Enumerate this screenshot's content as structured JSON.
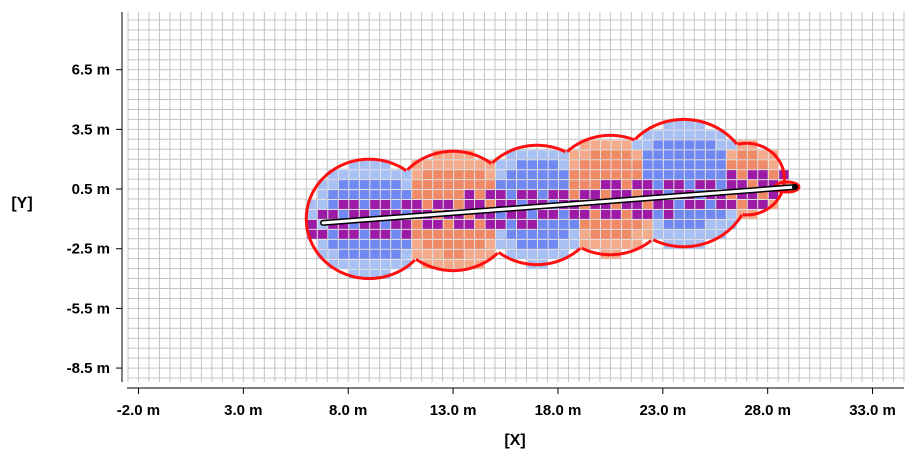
{
  "chart_data": {
    "type": "heatmap",
    "title": "",
    "xlabel": "[X]",
    "ylabel": "[Y]",
    "xlim": [
      -2.5,
      34.5
    ],
    "ylim": [
      -9.2,
      9.4
    ],
    "x_ticks": [
      -2.0,
      3.0,
      8.0,
      13.0,
      18.0,
      23.0,
      28.0,
      33.0
    ],
    "y_ticks": [
      -8.5,
      -5.5,
      -2.5,
      0.5,
      3.5,
      6.5
    ],
    "x_tick_labels": [
      "-2.0 m",
      "3.0 m",
      "8.0 m",
      "13.0 m",
      "18.0 m",
      "23.0 m",
      "28.0 m",
      "33.0 m"
    ],
    "y_tick_labels": [
      "-8.5 m",
      "-5.5 m",
      "-2.5 m",
      "0.5 m",
      "3.5 m",
      "6.5 m"
    ],
    "grid": true,
    "cell_size_m": 0.5,
    "colors": {
      "grid": "#c4c4c4",
      "outline": "#ff1010",
      "light_blue": "#a8c0f4",
      "blue": "#6f88f2",
      "salmon": "#f08a66",
      "light_salmon": "#f4ab8c",
      "purple": "#9c1aa6",
      "line": "#000000",
      "line_fill": "#ffffff"
    },
    "line_segment": {
      "start": [
        6.8,
        -1.2
      ],
      "end": [
        29.3,
        0.6
      ]
    },
    "coverage_circles": [
      {
        "center": [
          9.0,
          -1.0
        ],
        "radius": 3.0,
        "tone": "blue"
      },
      {
        "center": [
          13.0,
          -0.6
        ],
        "radius": 3.0,
        "tone": "salmon"
      },
      {
        "center": [
          17.0,
          -0.3
        ],
        "radius": 3.0,
        "tone": "blue"
      },
      {
        "center": [
          20.5,
          0.2
        ],
        "radius": 3.0,
        "tone": "salmon"
      },
      {
        "center": [
          24.0,
          0.8
        ],
        "radius": 3.2,
        "tone": "blue"
      },
      {
        "center": [
          27.0,
          1.0
        ],
        "radius": 1.8,
        "tone": "salmon"
      }
    ]
  }
}
